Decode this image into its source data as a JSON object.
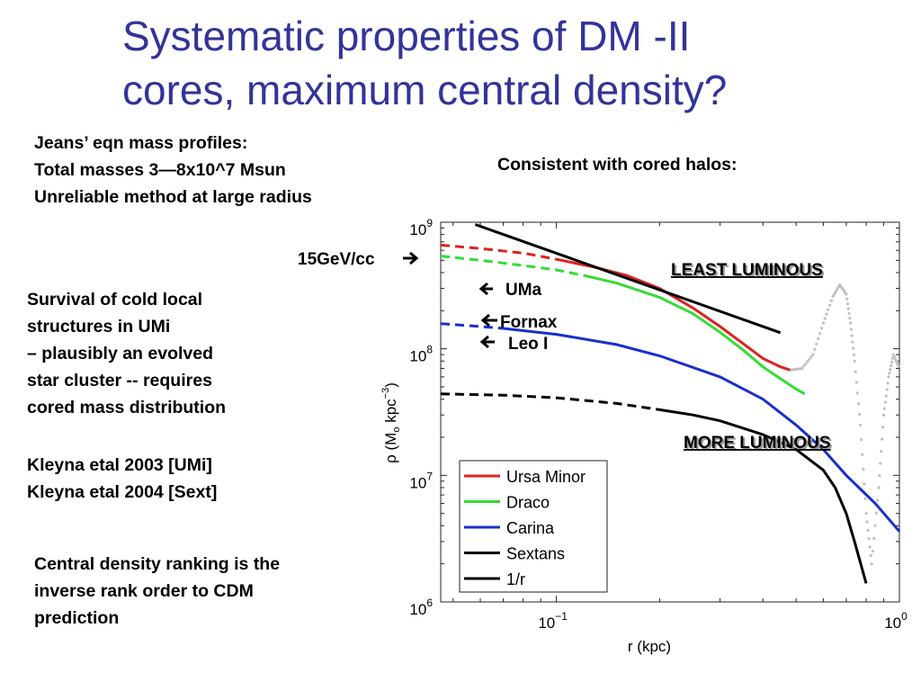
{
  "title": {
    "line1": "Systematic properties of DM -II",
    "line2": "cores, maximum central density?"
  },
  "notes": {
    "jeans": [
      "Jeans’ eqn mass profiles:",
      "Total masses  3—8x10^7 Msun",
      "Unreliable method at large radius"
    ],
    "consistent": "Consistent with cored halos:",
    "survival": [
      "Survival of cold local",
      "structures in UMi",
      "– plausibly an evolved",
      "star cluster --  requires",
      "cored mass distribution"
    ],
    "refs": [
      "Kleyna etal 2003 [UMi]",
      "Kleyna etal 2004 [Sext]"
    ],
    "ranking": [
      "Central density ranking is the",
      "inverse rank order to CDM",
      "prediction"
    ]
  },
  "colors": {
    "title": "#33339a",
    "ursa_minor": "#dd2222",
    "draco": "#33dd33",
    "carina": "#1a2fcc",
    "sextans": "#000000",
    "one_over_r": "#000000",
    "dots": "#c0c0c0"
  },
  "chart_data": {
    "type": "line",
    "x_scale": "log",
    "y_scale": "log",
    "xlim": [
      0.046,
      1.0
    ],
    "ylim": [
      1000000,
      1000000000
    ],
    "xlabel": "r (kpc)",
    "ylabel": "ρ (M",
    "ylabel_sub": "o",
    "ylabel_unit": " kpc",
    "ylabel_sup": "−3",
    "ylabel_close": ")",
    "x_ticks": [
      {
        "base": "10",
        "exp": "−1",
        "value": 0.1
      },
      {
        "base": "10",
        "exp": "0",
        "value": 1.0
      }
    ],
    "y_ticks": [
      {
        "base": "10",
        "exp": "6",
        "value": 1000000
      },
      {
        "base": "10",
        "exp": "7",
        "value": 10000000
      },
      {
        "base": "10",
        "exp": "8",
        "value": 100000000
      },
      {
        "base": "10",
        "exp": "9",
        "value": 1000000000
      }
    ],
    "legend_position": "bottom-left",
    "series": [
      {
        "name": "Ursa Minor",
        "color": "#dd2222",
        "dashed_x": [
          0.046,
          0.06,
          0.08,
          0.1
        ],
        "dashed_y": [
          660000000,
          620000000,
          570000000,
          510000000
        ],
        "solid_x": [
          0.1,
          0.13,
          0.16,
          0.2,
          0.25,
          0.3,
          0.35,
          0.4,
          0.45,
          0.48
        ],
        "solid_y": [
          510000000,
          440000000,
          380000000,
          300000000,
          210000000,
          150000000,
          110000000,
          84000000,
          72000000,
          68000000
        ]
      },
      {
        "name": "Draco",
        "color": "#33dd33",
        "dashed_x": [
          0.046,
          0.06,
          0.08,
          0.1,
          0.12
        ],
        "dashed_y": [
          540000000,
          500000000,
          455000000,
          420000000,
          380000000
        ],
        "solid_x": [
          0.12,
          0.15,
          0.2,
          0.25,
          0.3,
          0.35,
          0.4,
          0.45,
          0.5,
          0.53
        ],
        "solid_y": [
          380000000,
          330000000,
          255000000,
          190000000,
          135000000,
          98000000,
          72000000,
          58000000,
          48000000,
          44000000
        ]
      },
      {
        "name": "Carina",
        "color": "#1a2fcc",
        "dashed_x": [
          0.046,
          0.06,
          0.07
        ],
        "dashed_y": [
          158000000,
          150000000,
          145000000
        ],
        "solid_x": [
          0.07,
          0.1,
          0.15,
          0.2,
          0.3,
          0.4,
          0.5,
          0.6,
          0.7,
          0.85,
          1.0
        ],
        "solid_y": [
          145000000,
          130000000,
          108000000,
          88000000,
          60000000,
          40000000,
          25000000,
          16000000,
          10000000,
          6000000,
          3600000
        ]
      },
      {
        "name": "Sextans",
        "color": "#000000",
        "dashed_x": [
          0.046,
          0.07,
          0.1,
          0.15,
          0.2
        ],
        "dashed_y": [
          44000000,
          43000000,
          41000000,
          37000000,
          33000000
        ],
        "solid_x": [
          0.2,
          0.25,
          0.3,
          0.4,
          0.5,
          0.6,
          0.65,
          0.7,
          0.74,
          0.78,
          0.8
        ],
        "solid_y": [
          33000000,
          30000000,
          27000000,
          21000000,
          16000000,
          11000000,
          8000000,
          5000000,
          3000000,
          1800000,
          1400000
        ]
      },
      {
        "name": "1/r",
        "color": "#000000",
        "solid_x": [
          0.058,
          0.45
        ],
        "solid_y": [
          960000000,
          134000000
        ]
      }
    ],
    "dotted_x": [
      0.48,
      0.52,
      0.56,
      0.6,
      0.64,
      0.67,
      0.7,
      0.72,
      0.74,
      0.77,
      0.8,
      0.83,
      0.87,
      0.9,
      0.93,
      0.96,
      1.0
    ],
    "dotted_y": [
      68000000,
      70000000,
      90000000,
      160000000,
      260000000,
      320000000,
      270000000,
      160000000,
      80000000,
      25000000,
      5000000,
      2000000,
      8000000,
      30000000,
      60000000,
      90000000,
      70000000
    ],
    "annotations": {
      "density": "15GeV/cc",
      "density_y": 650000000,
      "uma": "UMa",
      "fornax": "Fornax",
      "leo": "Leo I",
      "least": "LEAST LUMINOUS",
      "more": "MORE LUMINOUS"
    }
  }
}
